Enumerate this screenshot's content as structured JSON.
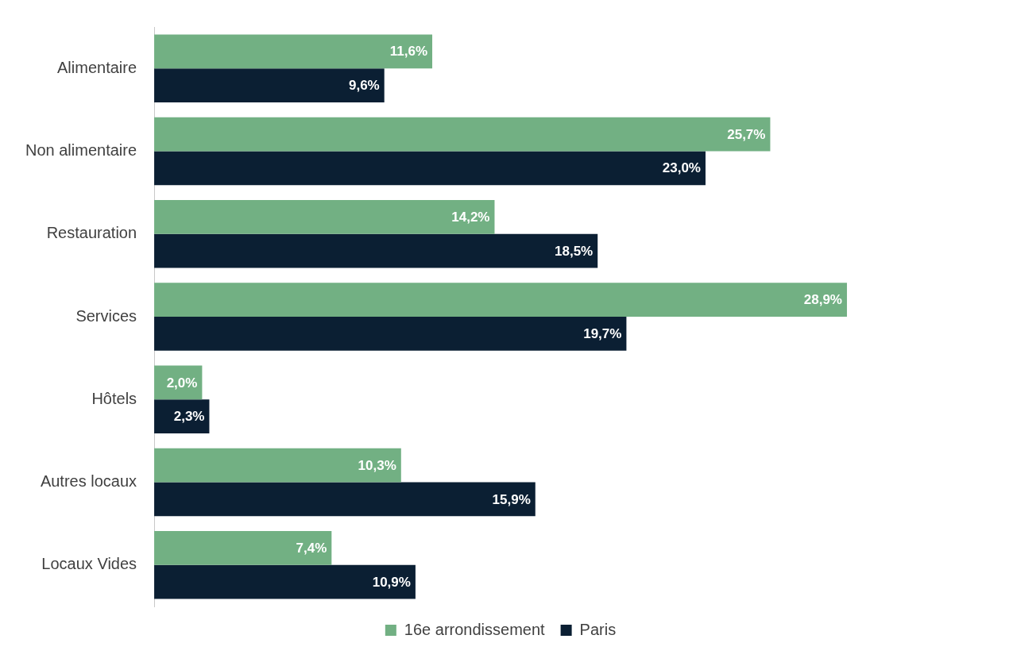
{
  "chart_data": {
    "type": "bar",
    "orientation": "horizontal",
    "categories": [
      "Alimentaire",
      "Non alimentaire",
      "Restauration",
      "Services",
      "Hôtels",
      "Autres locaux",
      "Locaux Vides"
    ],
    "series": [
      {
        "name": "16e arrondissement",
        "color": "#72b083",
        "values": [
          11.6,
          25.7,
          14.2,
          28.9,
          2.0,
          10.3,
          7.4
        ],
        "value_labels": [
          "11,6%",
          "25,7%",
          "14,2%",
          "28,9%",
          "2,0%",
          "10,3%",
          "7,4%"
        ]
      },
      {
        "name": "Paris",
        "color": "#0b1f33",
        "values": [
          9.6,
          23.0,
          18.5,
          19.7,
          2.3,
          15.9,
          10.9
        ],
        "value_labels": [
          "9,6%",
          "23,0%",
          "18,5%",
          "19,7%",
          "2,3%",
          "15,9%",
          "10,9%"
        ]
      }
    ],
    "xlim": [
      0,
      35
    ],
    "grid": false,
    "legend": "bottom",
    "data_labels": true,
    "tick_labels": "y"
  }
}
